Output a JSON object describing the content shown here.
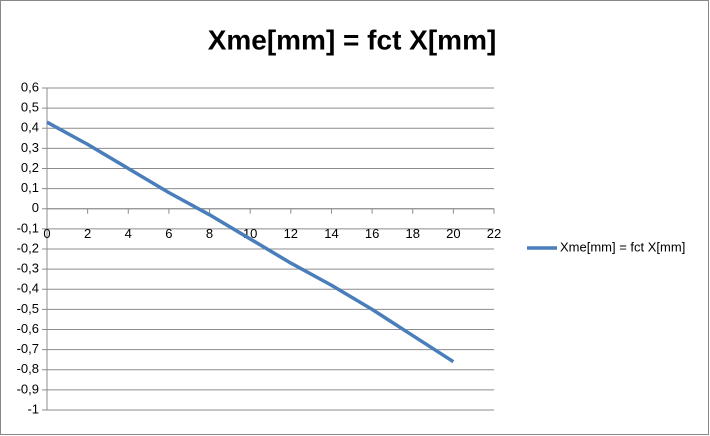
{
  "chart_data": {
    "type": "line",
    "title": "Xme[mm] = fct X[mm]",
    "x": [
      0,
      2,
      4,
      6,
      8,
      10,
      12,
      14,
      16,
      18,
      20
    ],
    "series": [
      {
        "name": "Xme[mm] = fct X[mm]",
        "color": "#4a7ebb",
        "values": [
          0.43,
          0.32,
          0.2,
          0.08,
          -0.03,
          -0.15,
          -0.27,
          -0.38,
          -0.5,
          -0.63,
          -0.76
        ]
      }
    ],
    "xlim": [
      0,
      22
    ],
    "xticks": [
      0,
      2,
      4,
      6,
      8,
      10,
      12,
      14,
      16,
      18,
      20,
      22
    ],
    "ylim": [
      -1,
      0.6
    ],
    "yticks": [
      -1,
      {
        "value": -0.9,
        "label": "-0,9"
      },
      {
        "value": -0.8,
        "label": "-0,8"
      },
      {
        "value": -0.7,
        "label": "-0,7"
      },
      {
        "value": -0.6,
        "label": "-0,6"
      },
      {
        "value": -0.5,
        "label": "-0,5"
      },
      {
        "value": -0.4,
        "label": "-0,4"
      },
      {
        "value": -0.3,
        "label": "-0,3"
      },
      {
        "value": -0.2,
        "label": "-0,2"
      },
      {
        "value": -0.1,
        "label": "-0,1"
      },
      0,
      {
        "value": 0.1,
        "label": "0,1"
      },
      {
        "value": 0.2,
        "label": "0,2"
      },
      {
        "value": 0.3,
        "label": "0,3"
      },
      {
        "value": 0.4,
        "label": "0,4"
      },
      {
        "value": 0.5,
        "label": "0,5"
      },
      {
        "value": 0.6,
        "label": "0,6"
      }
    ],
    "grid": true,
    "legend": "right"
  }
}
